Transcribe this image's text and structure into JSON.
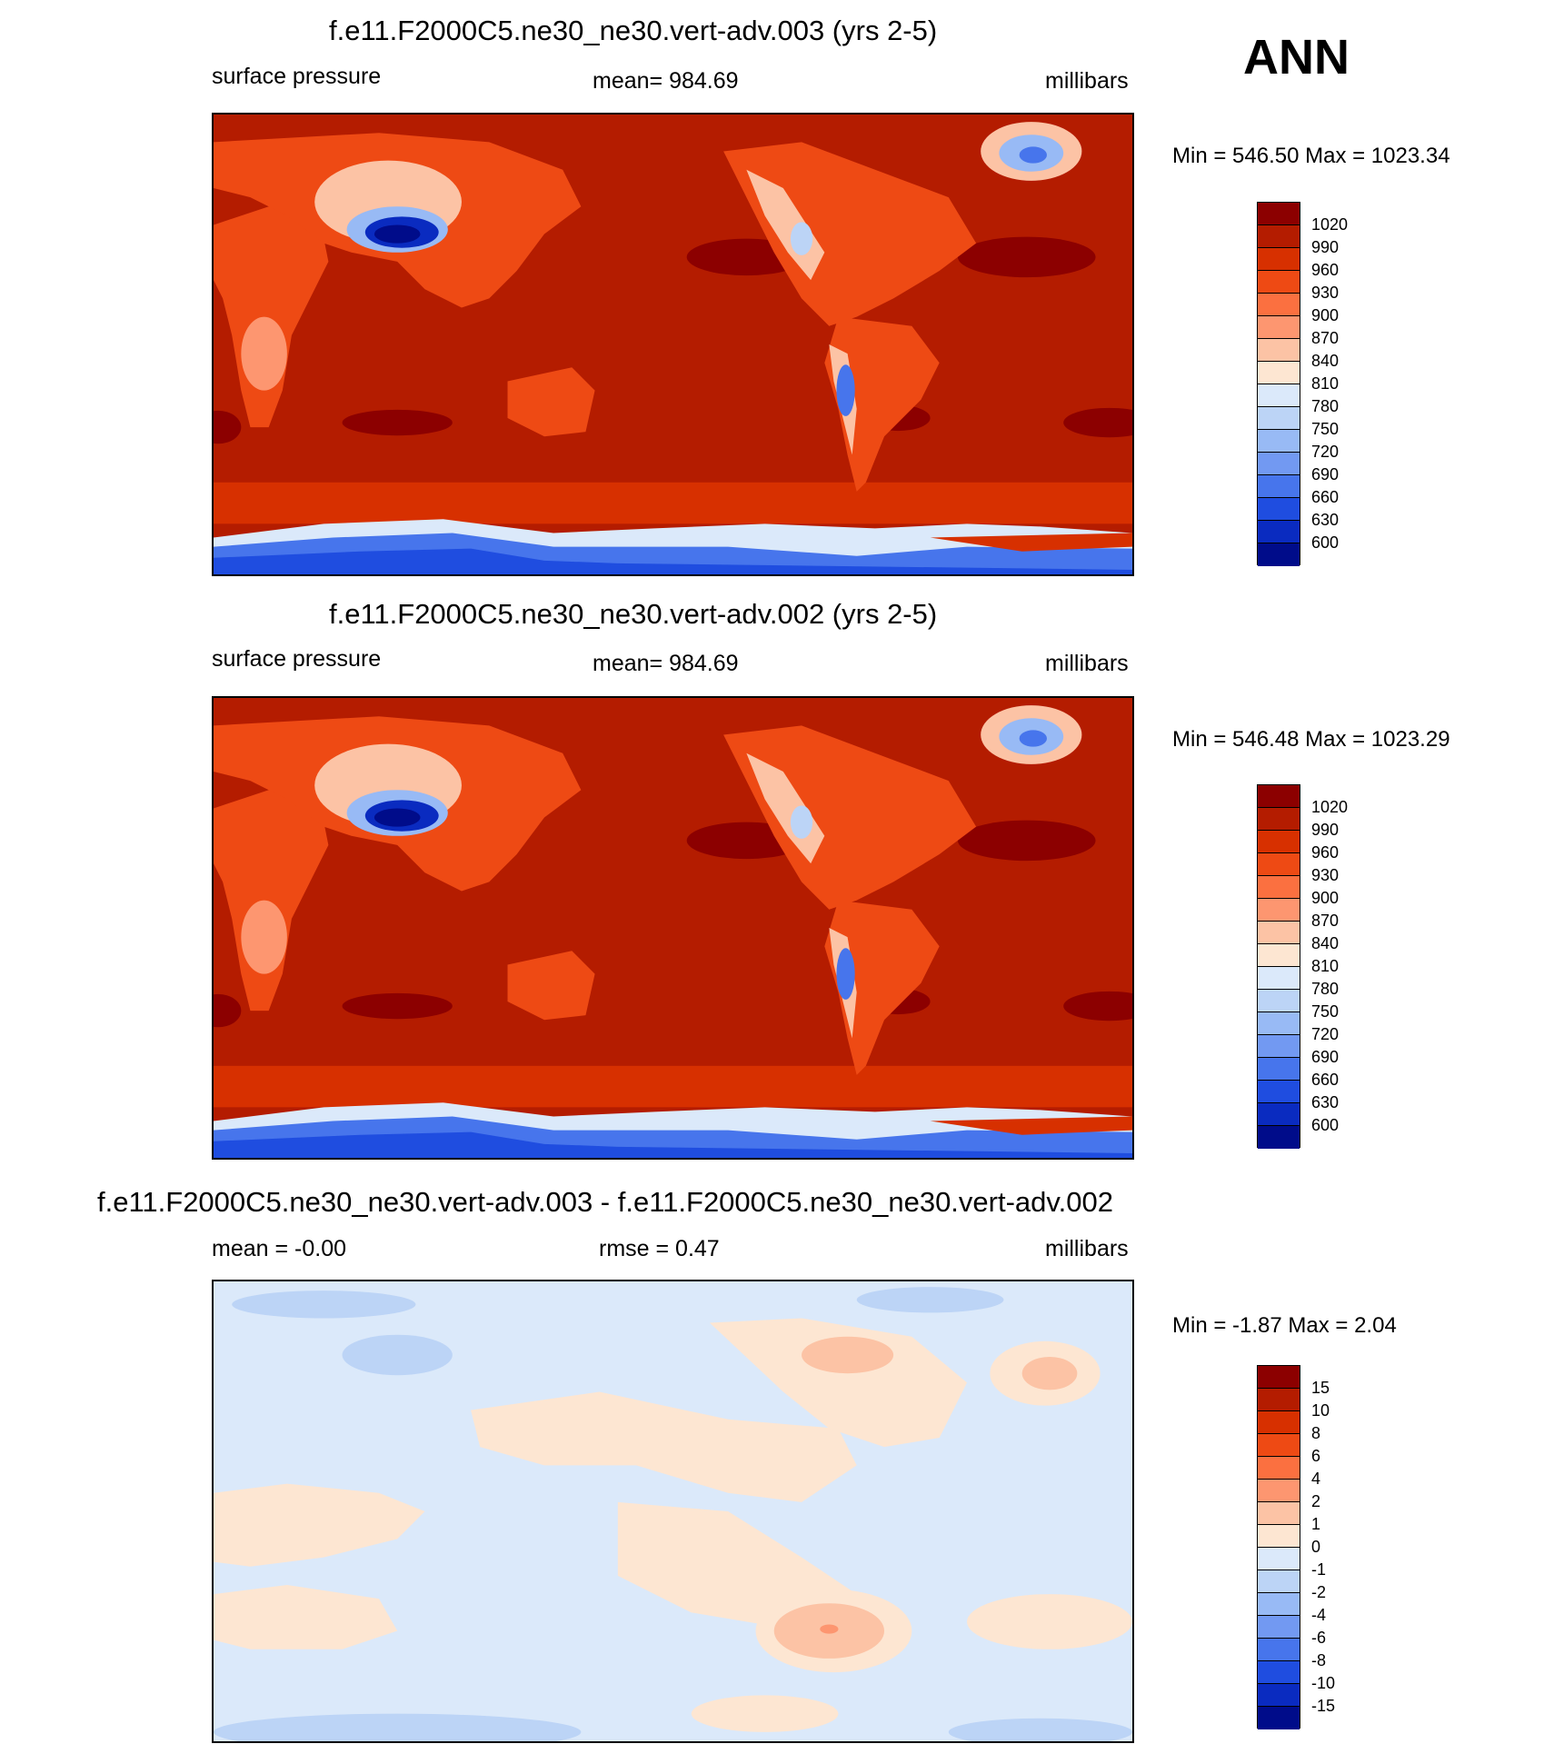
{
  "header": {
    "season": "ANN"
  },
  "panels": [
    {
      "title": "f.e11.F2000C5.ne30_ne30.vert-adv.003 (yrs 2-5)",
      "left_label": "surface pressure",
      "center_label": "mean= 984.69",
      "right_label": "millibars",
      "minmax": "Min = 546.50 Max = 1023.34"
    },
    {
      "title": "f.e11.F2000C5.ne30_ne30.vert-adv.002 (yrs 2-5)",
      "left_label": "surface pressure",
      "center_label": "mean= 984.69",
      "right_label": "millibars",
      "minmax": "Min = 546.48 Max = 1023.29"
    },
    {
      "title": "f.e11.F2000C5.ne30_ne30.vert-adv.003 - f.e11.F2000C5.ne30_ne30.vert-adv.002",
      "left_label": "mean =  -0.00",
      "center_label": "rmse =   0.47",
      "right_label": "millibars",
      "minmax": "Min =  -1.87 Max =   2.04"
    }
  ],
  "colorbars": {
    "pressure": {
      "labels": [
        "1020",
        "990",
        "960",
        "930",
        "900",
        "870",
        "840",
        "810",
        "780",
        "750",
        "720",
        "690",
        "660",
        "630",
        "600"
      ],
      "colors": [
        "#8c0000",
        "#b41c00",
        "#d73000",
        "#ee4a14",
        "#fb7040",
        "#fd9670",
        "#fcc3a5",
        "#fde6d2",
        "#dbe9fa",
        "#bcd4f6",
        "#98baf5",
        "#7299f2",
        "#4775ec",
        "#1f4de0",
        "#0a2bc0",
        "#000c8a"
      ]
    },
    "difference": {
      "labels": [
        "15",
        "10",
        "8",
        "6",
        "4",
        "2",
        "1",
        "0",
        "-1",
        "-2",
        "-4",
        "-6",
        "-8",
        "-10",
        "-15"
      ],
      "colors": [
        "#8c0000",
        "#b41c00",
        "#d73000",
        "#ee4a14",
        "#fb7040",
        "#fd9670",
        "#fcc3a5",
        "#fde6d2",
        "#dbe9fa",
        "#bcd4f6",
        "#98baf5",
        "#7299f2",
        "#4775ec",
        "#1f4de0",
        "#0a2bc0",
        "#000c8a"
      ]
    }
  }
}
